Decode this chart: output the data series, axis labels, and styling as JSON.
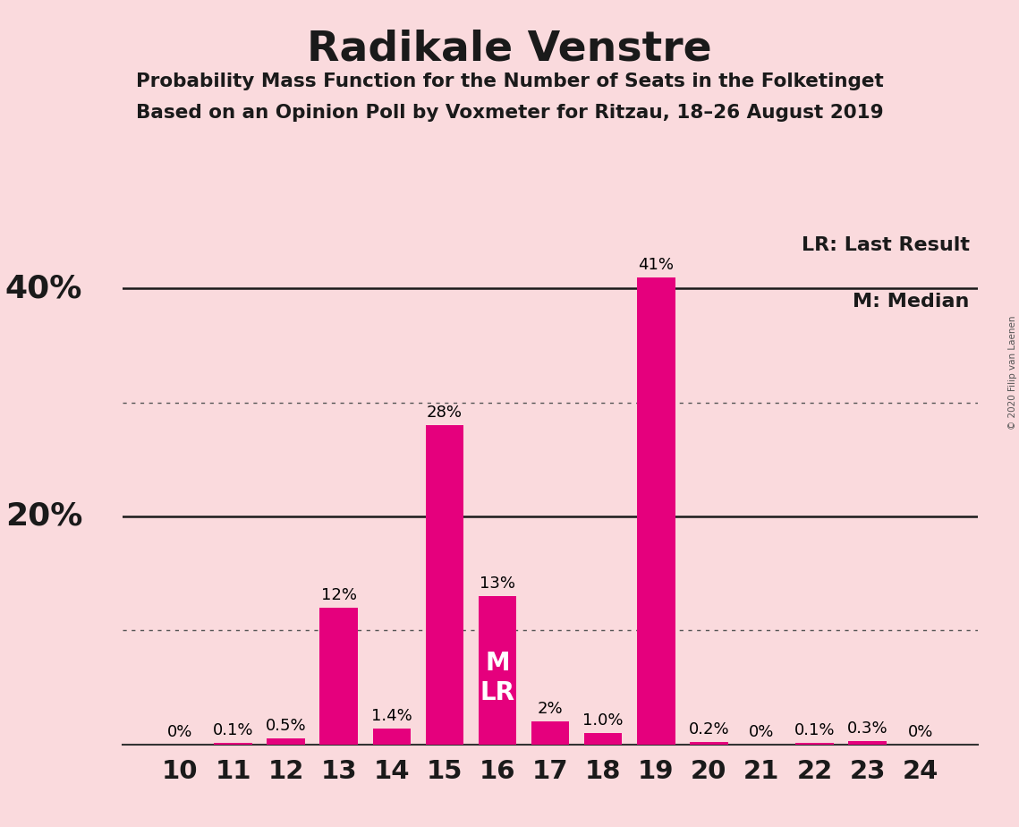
{
  "title": "Radikale Venstre",
  "subtitle1": "Probability Mass Function for the Number of Seats in the Folketinget",
  "subtitle2": "Based on an Opinion Poll by Voxmeter for Ritzau, 18–26 August 2019",
  "categories": [
    10,
    11,
    12,
    13,
    14,
    15,
    16,
    17,
    18,
    19,
    20,
    21,
    22,
    23,
    24
  ],
  "values": [
    0.0,
    0.1,
    0.5,
    12.0,
    1.4,
    28.0,
    13.0,
    2.0,
    1.0,
    41.0,
    0.2,
    0.0,
    0.1,
    0.3,
    0.0
  ],
  "labels": [
    "0%",
    "0.1%",
    "0.5%",
    "12%",
    "1.4%",
    "28%",
    "13%",
    "2%",
    "1.0%",
    "41%",
    "0.2%",
    "0%",
    "0.1%",
    "0.3%",
    "0%"
  ],
  "bar_color": "#E5007D",
  "background_color": "#FADADD",
  "text_color": "#1a1a1a",
  "median_seat": 16,
  "last_result_seat": 16,
  "median_label": "M",
  "last_result_label": "LR",
  "legend_lr": "LR: Last Result",
  "legend_m": "M: Median",
  "ymax": 45,
  "copyright": "© 2020 Filip van Laenen",
  "dotted_lines": [
    10,
    30
  ],
  "solid_lines": [
    20,
    40
  ],
  "ytick_positions": [
    20,
    40
  ],
  "ytick_labels": [
    "20%",
    "40%"
  ]
}
